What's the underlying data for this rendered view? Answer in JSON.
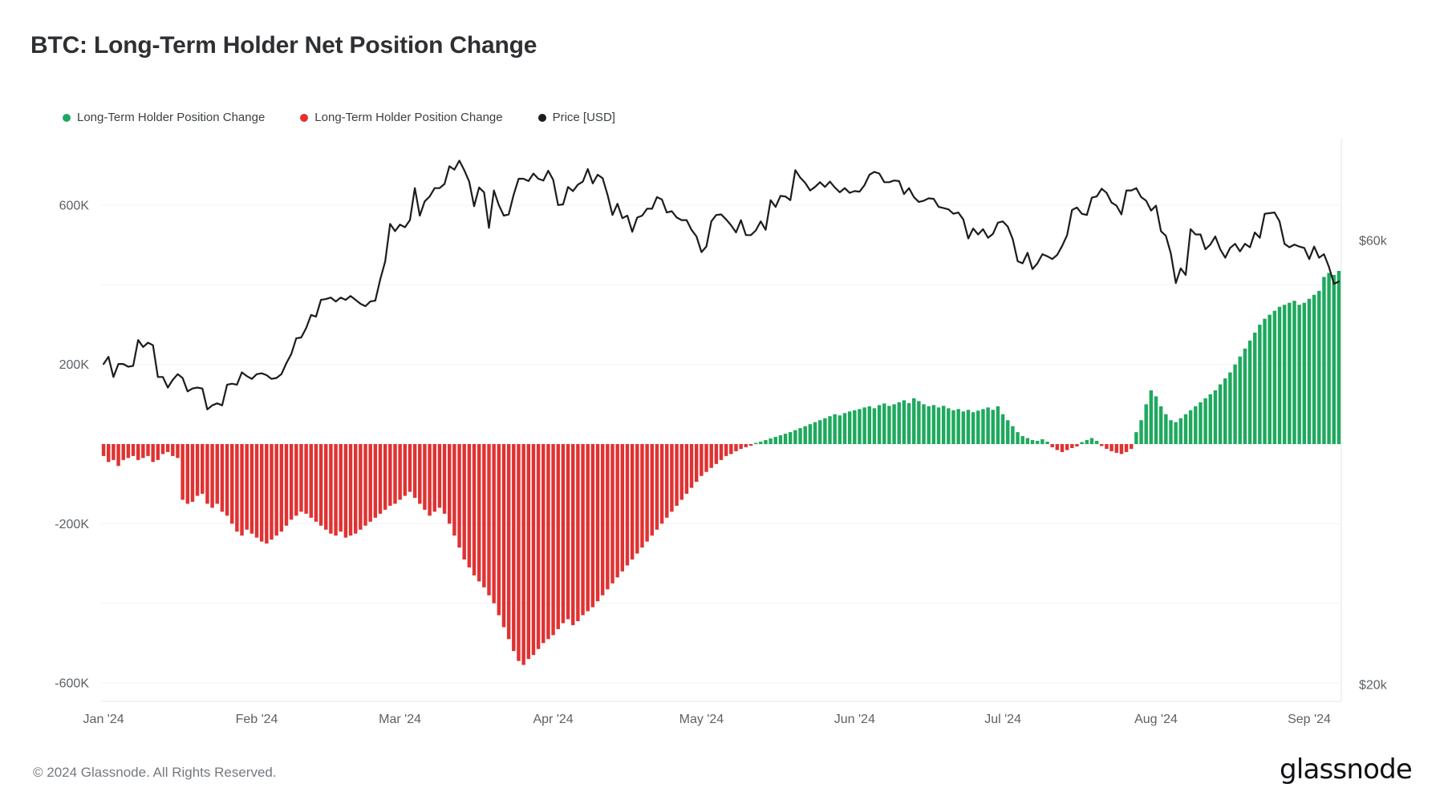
{
  "page": {
    "footer": "© 2024 Glassnode. All Rights Reserved.",
    "brand": "glassnode"
  },
  "chart_data": {
    "type": "bar+line",
    "title": "BTC: Long-Term Holder Net Position Change",
    "legend": [
      {
        "label": "Long-Term Holder Position Change",
        "color": "#1fa95e",
        "series": "positive-bars"
      },
      {
        "label": "Long-Term Holder Position Change",
        "color": "#e03232",
        "series": "negative-bars"
      },
      {
        "label": "Price [USD]",
        "color": "#1c1c1c",
        "series": "price-line"
      }
    ],
    "x_axis": {
      "start": "2024-01-01",
      "interval": "1 day",
      "ticks": [
        {
          "label": "Jan '24",
          "day": 0
        },
        {
          "label": "Feb '24",
          "day": 31
        },
        {
          "label": "Mar '24",
          "day": 60
        },
        {
          "label": "Apr '24",
          "day": 91
        },
        {
          "label": "May '24",
          "day": 121
        },
        {
          "label": "Jun '24",
          "day": 152
        },
        {
          "label": "Jul '24",
          "day": 182
        },
        {
          "label": "Aug '24",
          "day": 213
        },
        {
          "label": "Sep '24",
          "day": 244
        }
      ]
    },
    "left_axis": {
      "unit": "BTC (thousands)",
      "ticks": [
        {
          "label": "600K",
          "value": 600
        },
        {
          "label": "200K",
          "value": 200
        },
        {
          "label": "-200K",
          "value": -200
        },
        {
          "label": "-600K",
          "value": -600
        }
      ],
      "range_k": [
        -700,
        800
      ],
      "grid_values": [
        600,
        400,
        200,
        0,
        -200,
        -400,
        -600
      ]
    },
    "right_axis": {
      "unit": "USD (thousands)",
      "scale": "log",
      "ticks": [
        {
          "label": "$60k",
          "value": 60
        },
        {
          "label": "$20k",
          "value": 20
        }
      ]
    },
    "bars_unit": "K BTC per day (estimated from chart)",
    "bars": [
      -30,
      -45,
      -40,
      -55,
      -40,
      -35,
      -30,
      -40,
      -35,
      -30,
      -45,
      -40,
      -25,
      -20,
      -30,
      -35,
      -140,
      -150,
      -145,
      -130,
      -125,
      -150,
      -160,
      -150,
      -170,
      -180,
      -200,
      -220,
      -230,
      -215,
      -225,
      -235,
      -245,
      -250,
      -240,
      -230,
      -220,
      -205,
      -190,
      -180,
      -170,
      -175,
      -185,
      -195,
      -205,
      -215,
      -225,
      -230,
      -220,
      -235,
      -230,
      -225,
      -215,
      -205,
      -195,
      -185,
      -175,
      -165,
      -155,
      -150,
      -140,
      -130,
      -120,
      -135,
      -150,
      -165,
      -180,
      -170,
      -160,
      -175,
      -200,
      -230,
      -260,
      -290,
      -310,
      -330,
      -345,
      -360,
      -380,
      -400,
      -430,
      -460,
      -490,
      -520,
      -545,
      -555,
      -540,
      -530,
      -515,
      -500,
      -490,
      -480,
      -465,
      -450,
      -440,
      -455,
      -445,
      -430,
      -420,
      -410,
      -395,
      -380,
      -365,
      -350,
      -335,
      -320,
      -305,
      -290,
      -275,
      -260,
      -245,
      -230,
      -215,
      -200,
      -185,
      -170,
      -155,
      -140,
      -125,
      -110,
      -95,
      -80,
      -70,
      -60,
      -50,
      -40,
      -30,
      -25,
      -18,
      -12,
      -8,
      -4,
      3,
      6,
      10,
      14,
      18,
      22,
      26,
      30,
      35,
      40,
      45,
      50,
      55,
      60,
      65,
      70,
      75,
      72,
      78,
      82,
      85,
      88,
      92,
      95,
      90,
      98,
      102,
      96,
      100,
      105,
      110,
      103,
      115,
      108,
      100,
      95,
      98,
      92,
      96,
      90,
      85,
      88,
      82,
      86,
      80,
      84,
      88,
      92,
      86,
      95,
      75,
      60,
      45,
      30,
      20,
      15,
      10,
      8,
      12,
      6,
      -8,
      -15,
      -20,
      -15,
      -10,
      -6,
      5,
      10,
      15,
      8,
      -5,
      -12,
      -18,
      -22,
      -25,
      -20,
      -12,
      30,
      60,
      100,
      135,
      120,
      95,
      75,
      60,
      55,
      65,
      75,
      85,
      95,
      105,
      115,
      125,
      135,
      150,
      165,
      180,
      200,
      220,
      240,
      260,
      280,
      300,
      315,
      325,
      335,
      345,
      350,
      355,
      360,
      350,
      355,
      365,
      375,
      385,
      420,
      430,
      425,
      435
    ],
    "price_unit": "k USD (estimated from chart)",
    "price": [
      44.2,
      45.0,
      42.8,
      44.2,
      44.2,
      43.9,
      44.0,
      46.9,
      46.1,
      46.6,
      46.3,
      42.8,
      42.8,
      41.7,
      42.5,
      43.1,
      42.7,
      41.3,
      41.6,
      41.7,
      41.6,
      39.5,
      39.9,
      40.1,
      39.9,
      42.0,
      42.1,
      42.0,
      43.3,
      42.9,
      42.6,
      43.1,
      43.2,
      43.0,
      42.6,
      42.7,
      43.1,
      44.3,
      45.3,
      47.1,
      47.2,
      48.3,
      49.9,
      49.7,
      51.8,
      51.9,
      52.1,
      51.6,
      52.1,
      51.8,
      52.3,
      51.8,
      51.3,
      51.0,
      51.6,
      51.7,
      54.5,
      57.0,
      62.5,
      61.4,
      62.4,
      62.0,
      63.1,
      68.3,
      63.8,
      66.1,
      66.9,
      68.3,
      68.3,
      69.0,
      72.1,
      71.5,
      73.1,
      71.4,
      69.4,
      65.3,
      68.4,
      67.6,
      61.9,
      67.9,
      65.5,
      63.8,
      64.0,
      67.2,
      69.9,
      69.9,
      69.5,
      70.8,
      69.9,
      69.6,
      71.3,
      69.7,
      65.5,
      65.6,
      68.5,
      67.8,
      68.9,
      69.4,
      71.6,
      69.1,
      70.6,
      70.0,
      67.2,
      63.9,
      65.7,
      63.4,
      63.8,
      61.3,
      63.5,
      63.8,
      64.9,
      64.9,
      66.8,
      66.4,
      64.3,
      64.5,
      63.5,
      63.1,
      63.1,
      61.6,
      60.6,
      58.3,
      59.1,
      62.9,
      63.9,
      64.0,
      63.2,
      62.3,
      61.2,
      63.1,
      60.8,
      60.8,
      61.5,
      62.9,
      61.6,
      66.3,
      65.2,
      67.0,
      66.9,
      66.3,
      71.4,
      70.1,
      69.2,
      67.9,
      68.5,
      69.3,
      68.5,
      69.4,
      68.4,
      67.6,
      68.3,
      67.5,
      67.8,
      67.7,
      68.8,
      70.6,
      71.1,
      70.8,
      69.3,
      69.3,
      69.6,
      69.5,
      67.3,
      68.3,
      66.8,
      66.0,
      66.2,
      66.6,
      66.5,
      65.2,
      65.0,
      64.8,
      64.1,
      64.3,
      63.2,
      60.3,
      61.8,
      60.9,
      61.7,
      60.4,
      61.0,
      62.7,
      62.9,
      62.1,
      60.2,
      57.0,
      56.7,
      58.2,
      55.9,
      56.7,
      58.0,
      57.7,
      57.3,
      57.9,
      59.2,
      60.8,
      64.7,
      65.1,
      64.1,
      63.9,
      66.7,
      66.9,
      68.2,
      67.5,
      65.9,
      65.4,
      64.0,
      67.9,
      67.9,
      68.3,
      66.8,
      66.2,
      64.6,
      65.4,
      61.4,
      60.7,
      58.1,
      54.0,
      56.0,
      55.1,
      61.7,
      60.9,
      60.9,
      58.7,
      59.4,
      60.6,
      58.7,
      57.5,
      58.9,
      59.5,
      58.4,
      59.5,
      59.0,
      61.2,
      60.4,
      64.1,
      64.2,
      64.3,
      62.9,
      59.5,
      59.0,
      59.4,
      59.1,
      58.9,
      57.3,
      59.1,
      57.5,
      58.0,
      56.2,
      53.9,
      54.2
    ]
  }
}
